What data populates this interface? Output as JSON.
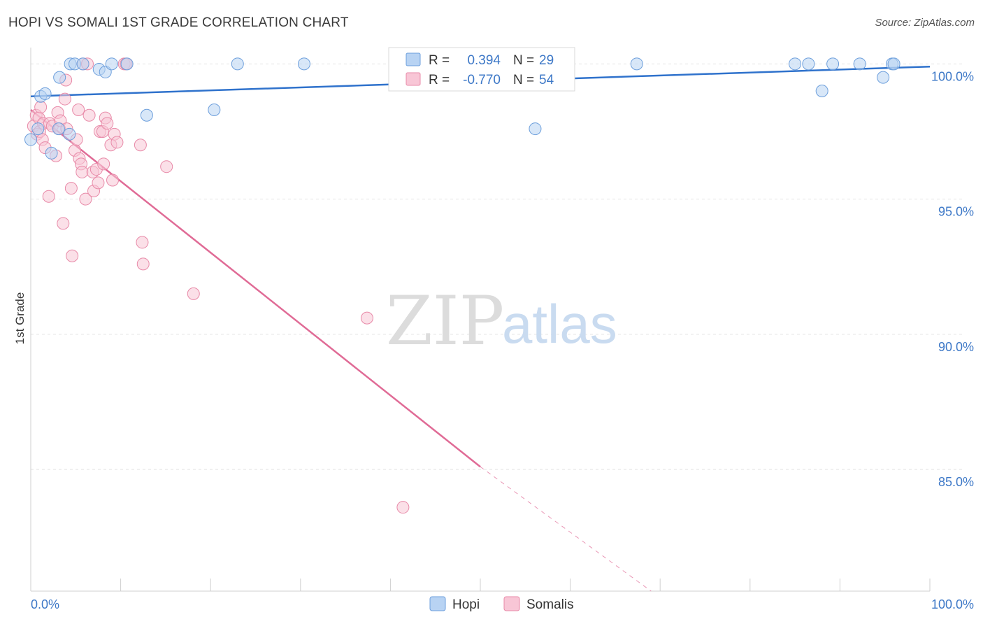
{
  "header": {
    "title": "HOPI VS SOMALI 1ST GRADE CORRELATION CHART",
    "source": "Source: ZipAtlas.com"
  },
  "watermark": {
    "zip": "ZIP",
    "atlas": "atlas"
  },
  "colors": {
    "hopi_fill": "#b8d3f3",
    "hopi_stroke": "#6d9fdc",
    "hopi_line": "#2f72cc",
    "somali_fill": "#f8c6d6",
    "somali_stroke": "#e88aa8",
    "somali_line": "#e06b96",
    "axis_text": "#3d78c7",
    "grid": "#e4e4e4"
  },
  "chart_data": {
    "type": "scatter",
    "title": "HOPI VS SOMALI 1ST GRADE CORRELATION CHART",
    "xlabel": "",
    "ylabel": "1st Grade",
    "xlim": [
      0,
      100
    ],
    "ylim": [
      80.5,
      100.5
    ],
    "x_tick_labels": [
      {
        "value": 0,
        "label": "0.0%"
      },
      {
        "value": 100,
        "label": "100.0%"
      }
    ],
    "y_ticks": [
      {
        "value": 100,
        "label": "100.0%"
      },
      {
        "value": 95,
        "label": "95.0%"
      },
      {
        "value": 90,
        "label": "90.0%"
      },
      {
        "value": 85,
        "label": "85.0%"
      }
    ],
    "x_minor_ticks": [
      10,
      20,
      30,
      40,
      50,
      60,
      70,
      80,
      90
    ],
    "legend_position": "top-center",
    "series": [
      {
        "name": "Hopi",
        "r_label": "R =",
        "r_value": "0.394",
        "n_label": "N =",
        "n_value": "29",
        "trend": {
          "x0": 0,
          "y0": 98.8,
          "x1": 100,
          "y1": 99.9
        },
        "points": [
          [
            0.0,
            97.2
          ],
          [
            0.8,
            97.6
          ],
          [
            1.1,
            98.8
          ],
          [
            1.6,
            98.9
          ],
          [
            2.3,
            96.7
          ],
          [
            3.1,
            97.6
          ],
          [
            3.2,
            99.5
          ],
          [
            4.3,
            97.4
          ],
          [
            4.4,
            100.0
          ],
          [
            4.9,
            100.0
          ],
          [
            5.8,
            100.0
          ],
          [
            7.6,
            99.8
          ],
          [
            8.3,
            99.7
          ],
          [
            9.0,
            100.0
          ],
          [
            10.7,
            100.0
          ],
          [
            12.9,
            98.1
          ],
          [
            20.4,
            98.3
          ],
          [
            23.0,
            100.0
          ],
          [
            30.4,
            100.0
          ],
          [
            56.1,
            97.6
          ],
          [
            67.4,
            100.0
          ],
          [
            85.0,
            100.0
          ],
          [
            86.5,
            100.0
          ],
          [
            88.0,
            99.0
          ],
          [
            89.2,
            100.0
          ],
          [
            92.2,
            100.0
          ],
          [
            94.8,
            99.5
          ],
          [
            95.8,
            100.0
          ],
          [
            96.0,
            100.0
          ]
        ]
      },
      {
        "name": "Somalis",
        "r_label": "R =",
        "r_value": "-0.770",
        "n_label": "N =",
        "n_value": "54",
        "trend": {
          "x0": 0,
          "y0": 98.3,
          "x1": 50,
          "y1": 85.1
        },
        "trend_dashed": {
          "x0": 50,
          "y0": 85.1,
          "x1": 69,
          "y1": 80.5
        },
        "points": [
          [
            0.3,
            97.7
          ],
          [
            0.6,
            98.1
          ],
          [
            0.7,
            97.4
          ],
          [
            0.9,
            98.0
          ],
          [
            1.0,
            97.5
          ],
          [
            1.1,
            98.4
          ],
          [
            1.3,
            97.2
          ],
          [
            1.4,
            97.8
          ],
          [
            1.6,
            96.9
          ],
          [
            2.0,
            95.1
          ],
          [
            2.1,
            97.8
          ],
          [
            2.4,
            97.7
          ],
          [
            2.8,
            96.6
          ],
          [
            3.0,
            98.2
          ],
          [
            3.2,
            97.6
          ],
          [
            3.3,
            97.9
          ],
          [
            3.6,
            94.1
          ],
          [
            3.8,
            98.7
          ],
          [
            3.9,
            99.4
          ],
          [
            4.0,
            97.6
          ],
          [
            4.5,
            95.4
          ],
          [
            4.6,
            92.9
          ],
          [
            4.9,
            96.8
          ],
          [
            5.1,
            97.2
          ],
          [
            5.3,
            98.3
          ],
          [
            5.4,
            96.5
          ],
          [
            5.6,
            96.3
          ],
          [
            5.7,
            96.0
          ],
          [
            5.8,
            100.0
          ],
          [
            6.1,
            95.0
          ],
          [
            6.3,
            100.0
          ],
          [
            6.5,
            98.1
          ],
          [
            6.9,
            96.0
          ],
          [
            7.0,
            95.3
          ],
          [
            7.3,
            96.1
          ],
          [
            7.5,
            95.6
          ],
          [
            7.7,
            97.5
          ],
          [
            8.0,
            97.5
          ],
          [
            8.1,
            96.3
          ],
          [
            8.3,
            98.0
          ],
          [
            8.5,
            97.8
          ],
          [
            8.9,
            97.0
          ],
          [
            9.1,
            95.7
          ],
          [
            9.3,
            97.4
          ],
          [
            9.6,
            97.1
          ],
          [
            10.4,
            100.0
          ],
          [
            10.6,
            100.0
          ],
          [
            12.2,
            97.0
          ],
          [
            12.4,
            93.4
          ],
          [
            12.5,
            92.6
          ],
          [
            15.1,
            96.2
          ],
          [
            18.1,
            91.5
          ],
          [
            37.4,
            90.6
          ],
          [
            41.4,
            83.6
          ]
        ]
      }
    ]
  }
}
